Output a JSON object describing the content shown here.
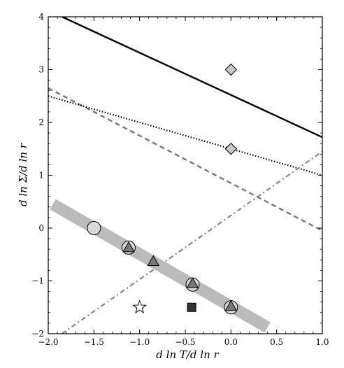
{
  "chart_data": {
    "type": "scatter",
    "title": "",
    "xlabel": "d ln T/d ln r",
    "ylabel": "d ln Σ/d ln r",
    "xlim": [
      -2.0,
      1.0
    ],
    "ylim": [
      -2,
      4
    ],
    "grid": false,
    "legend": "none",
    "x_ticks": [
      -2.0,
      -1.5,
      -1.0,
      -0.5,
      0.0,
      0.5,
      1.0
    ],
    "x_tick_labels": [
      "−2.0",
      "−1.5",
      "−1.0",
      "−0.5",
      "0.0",
      "0.5",
      "1.0"
    ],
    "y_ticks": [
      -2,
      -1,
      0,
      1,
      2,
      3,
      4
    ],
    "y_tick_labels": [
      "−2",
      "−1",
      "0",
      "1",
      "2",
      "3",
      "4"
    ],
    "lines": [
      {
        "style": "solid",
        "color": "#000000",
        "points": [
          [
            -1.85,
            4.0
          ],
          [
            1.0,
            1.72
          ]
        ]
      },
      {
        "style": "dashed",
        "color": "#777777",
        "points": [
          [
            -2.0,
            2.65
          ],
          [
            1.0,
            -0.05
          ]
        ]
      },
      {
        "style": "dotted",
        "color": "#000000",
        "points": [
          [
            -2.0,
            2.5
          ],
          [
            1.0,
            1.0
          ]
        ]
      },
      {
        "style": "dash-dot",
        "color": "#888888",
        "points": [
          [
            -1.85,
            -2.0
          ],
          [
            1.0,
            1.45
          ]
        ]
      },
      {
        "style": "thick-band",
        "color": "#bbbbbb",
        "points": [
          [
            -1.95,
            0.45
          ],
          [
            0.4,
            -1.88
          ]
        ]
      }
    ],
    "series": [
      {
        "marker": "circle",
        "fill": "#d9d9d9",
        "points": [
          [
            -1.5,
            0.0
          ],
          [
            -1.12,
            -0.37
          ],
          [
            -0.42,
            -1.07
          ],
          [
            0.0,
            -1.5
          ]
        ]
      },
      {
        "marker": "triangle",
        "fill": "#777777",
        "points": [
          [
            -1.12,
            -0.37
          ],
          [
            -0.85,
            -0.63
          ],
          [
            -0.42,
            -1.05
          ],
          [
            0.0,
            -1.48
          ]
        ]
      },
      {
        "marker": "diamond",
        "fill": "#c8c8c8",
        "points": [
          [
            0.0,
            3.0
          ],
          [
            0.0,
            1.5
          ]
        ]
      },
      {
        "marker": "square",
        "fill": "#333333",
        "points": [
          [
            -0.43,
            -1.5
          ]
        ]
      },
      {
        "marker": "star",
        "fill": "#ffffff",
        "points": [
          [
            -1.0,
            -1.5
          ]
        ]
      }
    ]
  }
}
